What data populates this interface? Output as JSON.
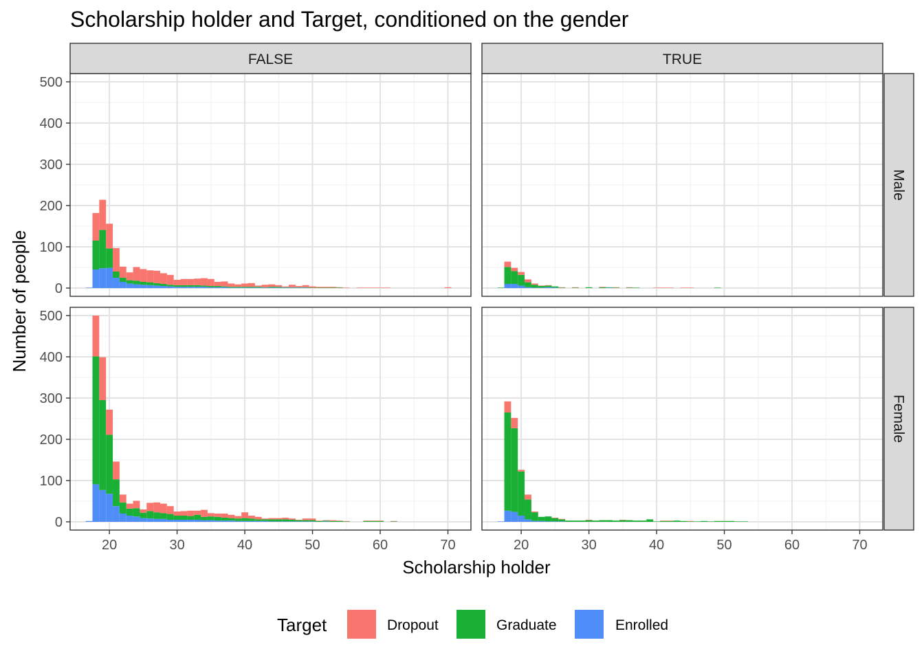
{
  "chart_data": {
    "type": "bar",
    "title": "Scholarship holder and Target, conditioned on the gender",
    "xlabel": "Scholarship holder",
    "ylabel": "Number of people",
    "xlim": [
      14.2,
      73.4
    ],
    "ylim": [
      -20,
      520
    ],
    "x_ticks": [
      20,
      30,
      40,
      50,
      60,
      70
    ],
    "y_ticks": [
      0,
      100,
      200,
      300,
      400,
      500
    ],
    "grid": true,
    "legend": {
      "title": "Target",
      "position": "bottom",
      "entries": [
        {
          "name": "Dropout",
          "color": "#F8766D"
        },
        {
          "name": "Graduate",
          "color": "#1AB035"
        },
        {
          "name": "Enrolled",
          "color": "#4F8EF8"
        }
      ]
    },
    "facet_columns": [
      "FALSE",
      "TRUE"
    ],
    "facet_rows": [
      "Male",
      "Female"
    ],
    "stack_order_top_to_bottom": [
      "Dropout",
      "Graduate",
      "Enrolled"
    ],
    "panels": [
      {
        "col": "FALSE",
        "row": "Male",
        "x": [
          17,
          18,
          19,
          20,
          21,
          22,
          23,
          24,
          25,
          26,
          27,
          28,
          29,
          30,
          31,
          32,
          33,
          34,
          35,
          36,
          37,
          38,
          39,
          40,
          41,
          42,
          43,
          44,
          45,
          46,
          47,
          48,
          49,
          50,
          51,
          52,
          53,
          54,
          55,
          57,
          58,
          59,
          60,
          61,
          70
        ],
        "Enrolled": [
          1,
          45,
          48,
          49,
          25,
          15,
          11,
          9,
          8,
          7,
          6,
          5,
          4,
          3,
          3,
          3,
          3,
          3,
          2,
          2,
          2,
          1,
          1,
          1,
          1,
          1,
          1,
          1,
          1,
          1,
          1,
          1,
          1,
          0,
          0,
          0,
          0,
          0,
          0,
          0,
          0,
          0,
          0,
          0,
          0
        ],
        "Graduate": [
          0,
          70,
          93,
          47,
          15,
          10,
          8,
          9,
          7,
          7,
          6,
          5,
          4,
          4,
          4,
          4,
          4,
          3,
          3,
          3,
          2,
          2,
          2,
          2,
          2,
          2,
          1,
          2,
          2,
          1,
          1,
          1,
          1,
          1,
          1,
          1,
          1,
          1,
          0,
          0,
          0,
          0,
          0,
          0,
          0
        ],
        "Dropout": [
          0,
          67,
          73,
          60,
          57,
          27,
          19,
          33,
          31,
          29,
          30,
          26,
          24,
          13,
          15,
          15,
          16,
          18,
          17,
          10,
          12,
          8,
          6,
          8,
          9,
          3,
          6,
          6,
          4,
          2,
          6,
          3,
          5,
          3,
          2,
          2,
          2,
          1,
          1,
          1,
          1,
          1,
          1,
          1,
          2
        ]
      },
      {
        "col": "TRUE",
        "row": "Male",
        "x": [
          17,
          18,
          19,
          20,
          21,
          22,
          23,
          24,
          25,
          26,
          28,
          30,
          32,
          33,
          34,
          36,
          37,
          40,
          41,
          42,
          44,
          45,
          49
        ],
        "Enrolled": [
          0,
          10,
          10,
          6,
          2,
          1,
          1,
          2,
          1,
          0,
          0,
          0,
          0,
          1,
          0,
          0,
          0,
          0,
          0,
          0,
          0,
          0,
          0
        ],
        "Graduate": [
          1,
          41,
          31,
          26,
          12,
          7,
          4,
          4,
          3,
          1,
          1,
          2,
          2,
          1,
          1,
          1,
          1,
          0,
          0,
          0,
          0,
          0,
          1
        ],
        "Dropout": [
          0,
          13,
          8,
          7,
          7,
          3,
          1,
          1,
          0,
          1,
          1,
          0,
          1,
          0,
          1,
          1,
          0,
          1,
          1,
          1,
          1,
          1,
          0
        ]
      },
      {
        "col": "FALSE",
        "row": "Female",
        "x": [
          17,
          18,
          19,
          20,
          21,
          22,
          23,
          24,
          25,
          26,
          27,
          28,
          29,
          30,
          31,
          32,
          33,
          34,
          35,
          36,
          37,
          38,
          39,
          40,
          41,
          42,
          43,
          44,
          45,
          46,
          47,
          48,
          49,
          50,
          51,
          52,
          53,
          54,
          55,
          58,
          59,
          60,
          62
        ],
        "Enrolled": [
          2,
          91,
          77,
          68,
          38,
          20,
          15,
          13,
          9,
          8,
          7,
          7,
          5,
          5,
          5,
          5,
          5,
          4,
          4,
          3,
          3,
          3,
          2,
          2,
          2,
          2,
          2,
          1,
          1,
          1,
          1,
          1,
          1,
          1,
          0,
          1,
          0,
          0,
          0,
          0,
          0,
          0,
          0
        ],
        "Graduate": [
          0,
          310,
          218,
          143,
          65,
          27,
          17,
          20,
          13,
          18,
          16,
          14,
          14,
          10,
          10,
          9,
          12,
          8,
          9,
          9,
          7,
          6,
          6,
          7,
          6,
          4,
          4,
          5,
          5,
          5,
          4,
          3,
          3,
          3,
          2,
          2,
          2,
          2,
          1,
          2,
          2,
          2,
          1
        ],
        "Dropout": [
          0,
          99,
          104,
          61,
          43,
          19,
          12,
          18,
          8,
          20,
          24,
          23,
          19,
          10,
          11,
          13,
          10,
          17,
          8,
          8,
          10,
          8,
          6,
          14,
          7,
          6,
          2,
          3,
          3,
          4,
          3,
          1,
          4,
          4,
          1,
          1,
          2,
          1,
          1,
          1,
          1,
          1,
          1
        ]
      },
      {
        "col": "TRUE",
        "row": "Female",
        "x": [
          17,
          18,
          19,
          20,
          21,
          22,
          23,
          24,
          25,
          26,
          27,
          28,
          29,
          30,
          31,
          32,
          33,
          34,
          35,
          36,
          37,
          38,
          39,
          40,
          41,
          42,
          43,
          44,
          45,
          46,
          47,
          48,
          49,
          50,
          51,
          52,
          53
        ],
        "Enrolled": [
          1,
          27,
          24,
          15,
          6,
          2,
          2,
          1,
          1,
          1,
          0,
          0,
          0,
          0,
          0,
          0,
          0,
          0,
          0,
          0,
          0,
          0,
          0,
          0,
          0,
          0,
          0,
          0,
          0,
          0,
          0,
          0,
          0,
          0,
          0,
          0,
          0
        ],
        "Graduate": [
          0,
          238,
          203,
          107,
          48,
          21,
          10,
          12,
          8,
          5,
          3,
          3,
          3,
          4,
          3,
          4,
          4,
          3,
          4,
          4,
          3,
          3,
          6,
          1,
          2,
          2,
          3,
          2,
          1,
          1,
          2,
          1,
          2,
          2,
          2,
          1,
          1
        ],
        "Dropout": [
          0,
          27,
          25,
          4,
          12,
          2,
          0,
          0,
          1,
          1,
          0,
          0,
          0,
          1,
          0,
          0,
          0,
          0,
          1,
          0,
          0,
          0,
          0,
          0,
          1,
          1,
          0,
          0,
          1,
          0,
          0,
          0,
          0,
          0,
          0,
          0,
          0
        ]
      }
    ]
  }
}
